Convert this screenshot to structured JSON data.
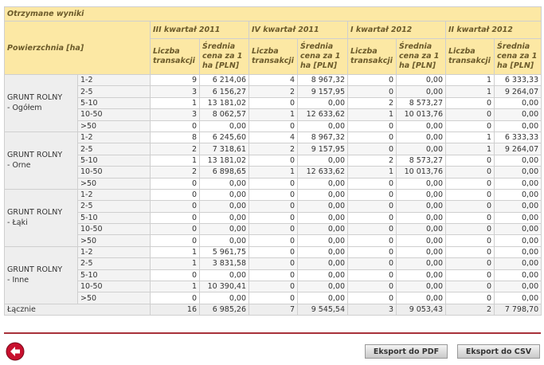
{
  "table": {
    "title": "Otrzymane wyniki",
    "header": "Powierzchnia [ha]",
    "quarters": [
      "III kwartał 2011",
      "IV kwartał 2011",
      "I kwartał 2012",
      "II kwartał 2012"
    ],
    "subheaders": [
      "Liczba transakcji",
      "Średnia cena za 1 ha [PLN]"
    ],
    "groups": [
      {
        "name": "GRUNT ROLNY",
        "sub": "- Ogółem",
        "rows": [
          {
            "range": "1-2",
            "cells": [
              "9",
              "6 214,06",
              "4",
              "8 967,32",
              "0",
              "0,00",
              "1",
              "6 333,33"
            ]
          },
          {
            "range": "2-5",
            "cells": [
              "3",
              "6 156,27",
              "2",
              "9 157,95",
              "0",
              "0,00",
              "1",
              "9 264,07"
            ]
          },
          {
            "range": "5-10",
            "cells": [
              "1",
              "13 181,02",
              "0",
              "0,00",
              "2",
              "8 573,27",
              "0",
              "0,00"
            ]
          },
          {
            "range": "10-50",
            "cells": [
              "3",
              "8 062,57",
              "1",
              "12 633,62",
              "1",
              "10 013,76",
              "0",
              "0,00"
            ]
          },
          {
            "range": ">50",
            "cells": [
              "0",
              "0,00",
              "0",
              "0,00",
              "0",
              "0,00",
              "0",
              "0,00"
            ]
          }
        ]
      },
      {
        "name": "GRUNT ROLNY",
        "sub": "- Orne",
        "rows": [
          {
            "range": "1-2",
            "cells": [
              "8",
              "6 245,60",
              "4",
              "8 967,32",
              "0",
              "0,00",
              "1",
              "6 333,33"
            ]
          },
          {
            "range": "2-5",
            "cells": [
              "2",
              "7 318,61",
              "2",
              "9 157,95",
              "0",
              "0,00",
              "1",
              "9 264,07"
            ]
          },
          {
            "range": "5-10",
            "cells": [
              "1",
              "13 181,02",
              "0",
              "0,00",
              "2",
              "8 573,27",
              "0",
              "0,00"
            ]
          },
          {
            "range": "10-50",
            "cells": [
              "2",
              "6 898,65",
              "1",
              "12 633,62",
              "1",
              "10 013,76",
              "0",
              "0,00"
            ]
          },
          {
            "range": ">50",
            "cells": [
              "0",
              "0,00",
              "0",
              "0,00",
              "0",
              "0,00",
              "0",
              "0,00"
            ]
          }
        ]
      },
      {
        "name": "GRUNT ROLNY",
        "sub": "- Łąki",
        "rows": [
          {
            "range": "1-2",
            "cells": [
              "0",
              "0,00",
              "0",
              "0,00",
              "0",
              "0,00",
              "0",
              "0,00"
            ]
          },
          {
            "range": "2-5",
            "cells": [
              "0",
              "0,00",
              "0",
              "0,00",
              "0",
              "0,00",
              "0",
              "0,00"
            ]
          },
          {
            "range": "5-10",
            "cells": [
              "0",
              "0,00",
              "0",
              "0,00",
              "0",
              "0,00",
              "0",
              "0,00"
            ]
          },
          {
            "range": "10-50",
            "cells": [
              "0",
              "0,00",
              "0",
              "0,00",
              "0",
              "0,00",
              "0",
              "0,00"
            ]
          },
          {
            "range": ">50",
            "cells": [
              "0",
              "0,00",
              "0",
              "0,00",
              "0",
              "0,00",
              "0",
              "0,00"
            ]
          }
        ]
      },
      {
        "name": "GRUNT ROLNY",
        "sub": "- Inne",
        "rows": [
          {
            "range": "1-2",
            "cells": [
              "1",
              "5 961,75",
              "0",
              "0,00",
              "0",
              "0,00",
              "0",
              "0,00"
            ]
          },
          {
            "range": "2-5",
            "cells": [
              "1",
              "3 831,58",
              "0",
              "0,00",
              "0",
              "0,00",
              "0",
              "0,00"
            ]
          },
          {
            "range": "5-10",
            "cells": [
              "0",
              "0,00",
              "0",
              "0,00",
              "0",
              "0,00",
              "0",
              "0,00"
            ]
          },
          {
            "range": "10-50",
            "cells": [
              "1",
              "10 390,41",
              "0",
              "0,00",
              "0",
              "0,00",
              "0",
              "0,00"
            ]
          },
          {
            "range": ">50",
            "cells": [
              "0",
              "0,00",
              "0",
              "0,00",
              "0",
              "0,00",
              "0",
              "0,00"
            ]
          }
        ]
      }
    ],
    "total": {
      "label": "Łącznie",
      "cells": [
        "16",
        "6 985,26",
        "7",
        "9 545,54",
        "3",
        "9 053,43",
        "2",
        "7 798,70"
      ]
    }
  },
  "buttons": {
    "pdf": "Eksport do PDF",
    "csv": "Eksport do CSV"
  }
}
